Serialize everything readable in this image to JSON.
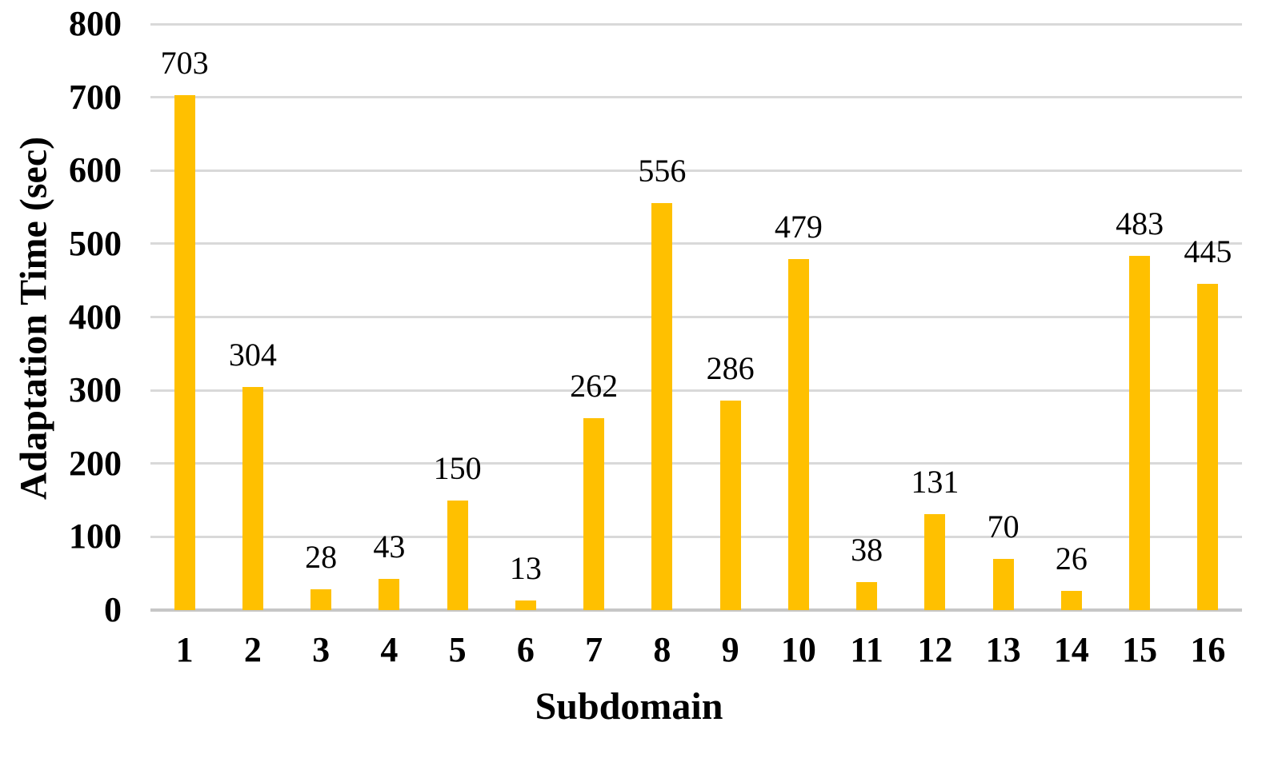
{
  "chart_data": {
    "type": "bar",
    "title": "",
    "categories": [
      "1",
      "2",
      "3",
      "4",
      "5",
      "6",
      "7",
      "8",
      "9",
      "10",
      "11",
      "12",
      "13",
      "14",
      "15",
      "16"
    ],
    "values": [
      703,
      304,
      28,
      43,
      150,
      13,
      262,
      556,
      286,
      479,
      38,
      131,
      70,
      26,
      483,
      445
    ],
    "xlabel": "Subdomain",
    "ylabel": "Adaptation Time (sec)",
    "ylim": [
      0,
      800
    ],
    "yticks": [
      0,
      100,
      200,
      300,
      400,
      500,
      600,
      700,
      800
    ],
    "grid": "horizontal-only",
    "legend_position": "none",
    "data_labels": "above-bars",
    "bar_color": "#ffc000",
    "gridline_color": "#d9d9d9",
    "axis_line_color": "#c6c6c6",
    "text_color": "#000000"
  }
}
